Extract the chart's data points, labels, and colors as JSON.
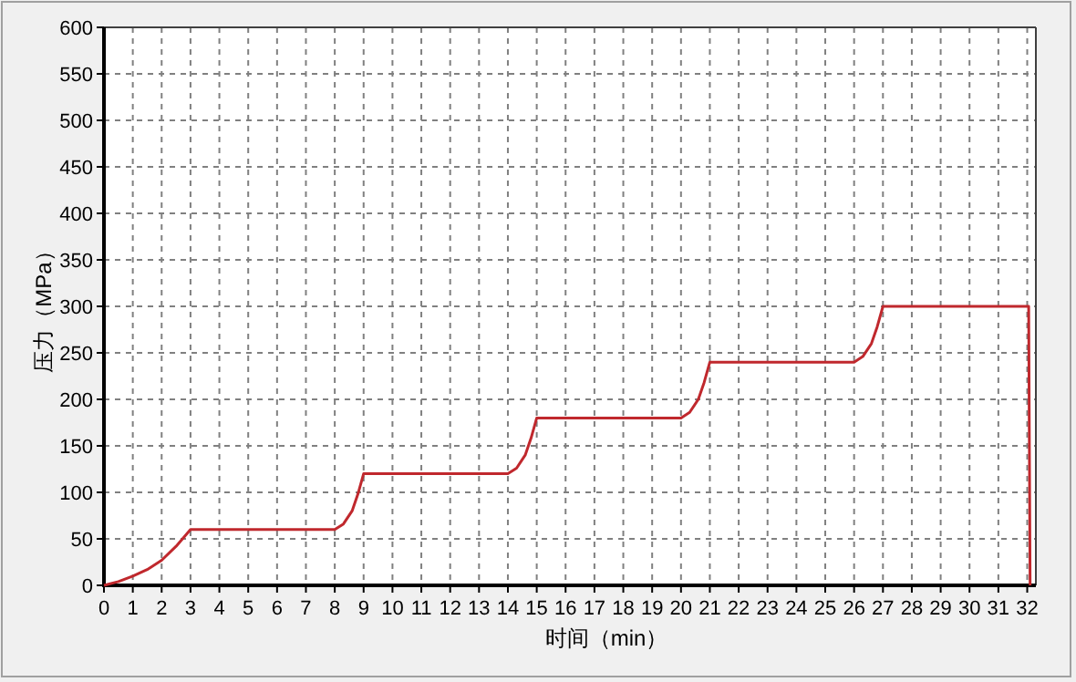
{
  "chart_data": {
    "type": "line",
    "xlabel": "时间（min）",
    "ylabel": "压力（MPa）",
    "xlim": [
      0,
      32.3
    ],
    "ylim": [
      0,
      600
    ],
    "xticks": [
      0,
      1,
      2,
      3,
      4,
      5,
      6,
      7,
      8,
      9,
      10,
      11,
      12,
      13,
      14,
      15,
      16,
      17,
      18,
      19,
      20,
      21,
      22,
      23,
      24,
      25,
      26,
      27,
      28,
      29,
      30,
      31,
      32
    ],
    "yticks": [
      0,
      50,
      100,
      150,
      200,
      250,
      300,
      350,
      400,
      450,
      500,
      550,
      600
    ],
    "grid": true,
    "series": [
      {
        "color": "#c0282d",
        "x": [
          0,
          0.5,
          1,
          1.5,
          2,
          2.5,
          3,
          8,
          8.3,
          8.6,
          8.8,
          9,
          14,
          14.3,
          14.6,
          14.8,
          15,
          20,
          20.3,
          20.6,
          20.8,
          21,
          26,
          26.3,
          26.6,
          26.8,
          27,
          32.05,
          32.1
        ],
        "values": [
          0,
          4,
          10,
          17,
          27,
          42,
          60,
          60,
          66,
          80,
          98,
          120,
          120,
          126,
          140,
          158,
          180,
          180,
          186,
          200,
          218,
          240,
          240,
          246,
          260,
          278,
          300,
          300,
          0
        ]
      }
    ]
  }
}
